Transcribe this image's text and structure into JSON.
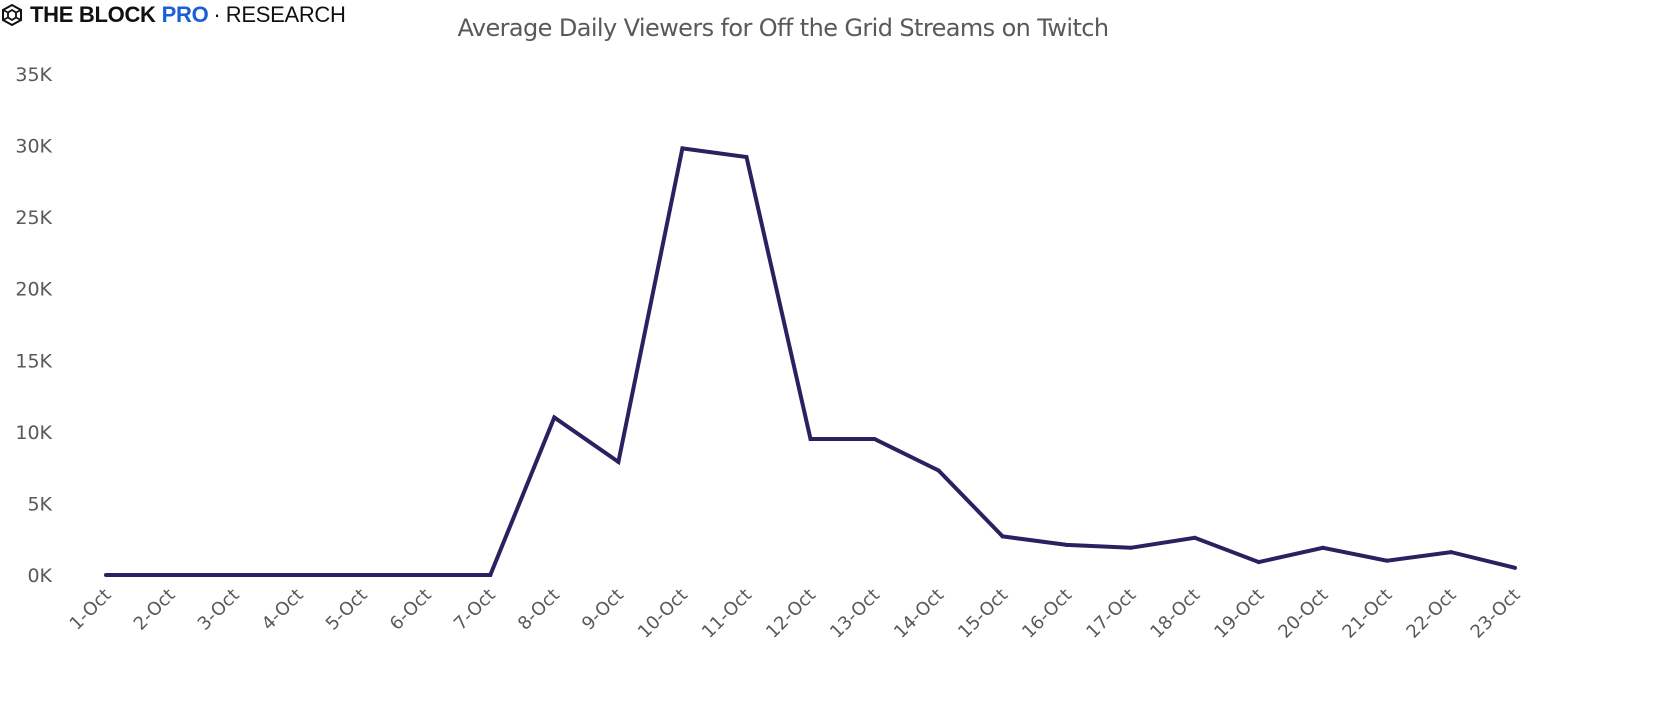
{
  "brand": {
    "logo_icon": "cube-logo-icon",
    "name": "THE BLOCK",
    "pro": "PRO",
    "separator": "·",
    "section": "RESEARCH",
    "pro_color": "#1a5fd6"
  },
  "chart_data": {
    "type": "line",
    "title": "Average Daily Viewers for Off the Grid Streams on Twitch",
    "xlabel": "",
    "ylabel": "",
    "categories": [
      "1-Oct",
      "2-Oct",
      "3-Oct",
      "4-Oct",
      "5-Oct",
      "6-Oct",
      "7-Oct",
      "8-Oct",
      "9-Oct",
      "10-Oct",
      "11-Oct",
      "12-Oct",
      "13-Oct",
      "14-Oct",
      "15-Oct",
      "16-Oct",
      "17-Oct",
      "18-Oct",
      "19-Oct",
      "20-Oct",
      "21-Oct",
      "22-Oct",
      "23-Oct"
    ],
    "series": [
      {
        "name": "Average Daily Viewers",
        "color": "#2a2260",
        "values": [
          0,
          0,
          0,
          0,
          0,
          0,
          0,
          11000,
          7900,
          29800,
          29200,
          9500,
          9500,
          7300,
          2700,
          2100,
          1900,
          2600,
          900,
          1900,
          1000,
          1600,
          500
        ]
      }
    ],
    "ylim": [
      0,
      35000
    ],
    "yticks": [
      0,
      5000,
      10000,
      15000,
      20000,
      25000,
      30000,
      35000
    ],
    "ytick_labels": [
      "0K",
      "5K",
      "10K",
      "15K",
      "20K",
      "25K",
      "30K",
      "35K"
    ],
    "grid": false,
    "legend": "none"
  }
}
